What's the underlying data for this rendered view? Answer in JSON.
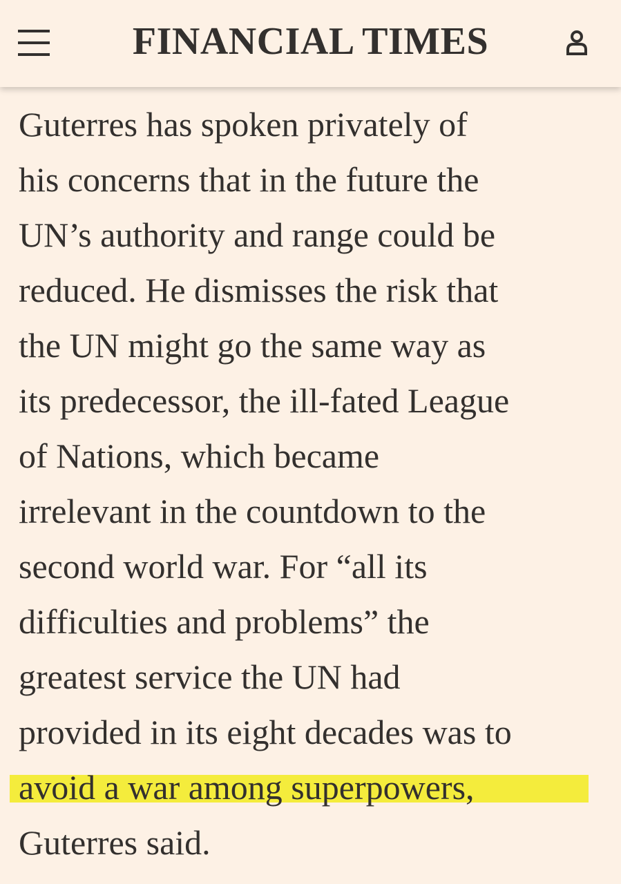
{
  "header": {
    "title": "FINANCIAL TIMES"
  },
  "article": {
    "lines_before": [
      "Guterres has spoken privately of",
      "his concerns that in the future the",
      "UN’s authority and range could be",
      "reduced. He dismisses the risk that",
      "the UN might go the same way as",
      "its predecessor, the ill-fated League",
      "of Nations, which became",
      "irrelevant in the countdown to the",
      "second world war. For “all its",
      "difficulties and problems” the",
      "greatest service the UN had",
      "provided in its eight decades was to"
    ],
    "highlight": "avoid a war among superpowers,",
    "lines_after": [
      "Guterres said."
    ]
  }
}
